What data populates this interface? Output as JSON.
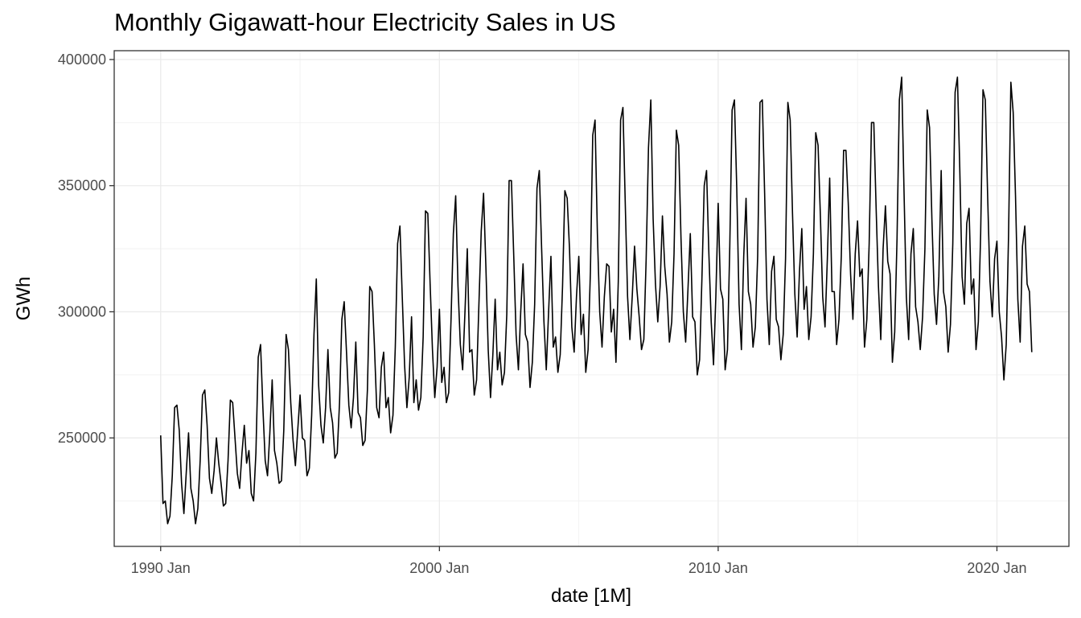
{
  "chart_data": {
    "type": "line",
    "title": "Monthly Gigawatt-hour Electricity Sales in US",
    "xlabel": "date [1M]",
    "ylabel": "GWh",
    "x_ticks": [
      "1990 Jan",
      "2000 Jan",
      "2010 Jan",
      "2020 Jan"
    ],
    "y_ticks": [
      "250000",
      "300000",
      "350000",
      "400000"
    ],
    "ylim": [
      207000,
      403500
    ],
    "xlim": [
      "1988-05",
      "2022-08"
    ],
    "grid": true,
    "legend": "none",
    "line_color": "#000000",
    "series": [
      {
        "start": "1990-01",
        "frequency": "monthly",
        "values": [
          251000,
          224000,
          225000,
          216000,
          219000,
          235000,
          262000,
          263000,
          253000,
          232000,
          220000,
          236000,
          252000,
          230000,
          225000,
          216000,
          222000,
          241000,
          267000,
          269000,
          255000,
          234000,
          228000,
          237000,
          250000,
          240000,
          232000,
          223000,
          224000,
          241000,
          265000,
          264000,
          250000,
          236000,
          230000,
          244000,
          255000,
          240000,
          245000,
          228000,
          225000,
          244000,
          282000,
          287000,
          262000,
          241000,
          235000,
          252000,
          273000,
          245000,
          240000,
          232000,
          233000,
          253000,
          291000,
          285000,
          264000,
          249000,
          239000,
          253000,
          267000,
          250000,
          249000,
          235000,
          238000,
          259000,
          291000,
          313000,
          271000,
          255000,
          248000,
          262000,
          285000,
          262000,
          256000,
          242000,
          244000,
          264000,
          297000,
          304000,
          284000,
          263000,
          254000,
          266000,
          288000,
          260000,
          258000,
          247000,
          249000,
          269000,
          310000,
          308000,
          287000,
          262000,
          258000,
          278000,
          284000,
          262000,
          266000,
          252000,
          259000,
          286000,
          327000,
          334000,
          306000,
          279000,
          262000,
          274000,
          298000,
          264000,
          273000,
          261000,
          266000,
          290000,
          340000,
          339000,
          311000,
          285000,
          266000,
          278000,
          301000,
          272000,
          278000,
          264000,
          268000,
          297000,
          331000,
          346000,
          310000,
          287000,
          277000,
          300000,
          325000,
          284000,
          285000,
          267000,
          273000,
          303000,
          332000,
          347000,
          318000,
          285000,
          266000,
          283000,
          305000,
          277000,
          284000,
          271000,
          276000,
          299000,
          352000,
          352000,
          322000,
          291000,
          277000,
          300000,
          319000,
          291000,
          288000,
          270000,
          280000,
          303000,
          349000,
          356000,
          325000,
          296000,
          277000,
          300000,
          322000,
          286000,
          290000,
          276000,
          283000,
          310000,
          348000,
          345000,
          325000,
          294000,
          284000,
          306000,
          322000,
          291000,
          299000,
          276000,
          285000,
          316000,
          370000,
          376000,
          331000,
          300000,
          286000,
          306000,
          319000,
          318000,
          292000,
          301000,
          280000,
          312000,
          376000,
          381000,
          343000,
          306000,
          289000,
          306000,
          326000,
          309000,
          298000,
          285000,
          289000,
          321000,
          365000,
          384000,
          337000,
          311000,
          296000,
          310000,
          338000,
          318000,
          307000,
          288000,
          296000,
          323000,
          372000,
          366000,
          329000,
          300000,
          288000,
          309000,
          331000,
          298000,
          296000,
          275000,
          281000,
          313000,
          350000,
          356000,
          323000,
          296000,
          279000,
          306000,
          343000,
          309000,
          305000,
          277000,
          285000,
          326000,
          380000,
          384000,
          349000,
          303000,
          285000,
          322000,
          345000,
          308000,
          303000,
          286000,
          294000,
          322000,
          383000,
          384000,
          347000,
          305000,
          287000,
          316000,
          322000,
          297000,
          294000,
          281000,
          291000,
          321000,
          383000,
          376000,
          339000,
          307000,
          290000,
          316000,
          333000,
          301000,
          310000,
          289000,
          298000,
          323000,
          371000,
          366000,
          338000,
          306000,
          294000,
          321000,
          353000,
          308000,
          308000,
          287000,
          297000,
          322000,
          364000,
          364000,
          343000,
          315000,
          297000,
          323000,
          336000,
          314000,
          317000,
          286000,
          297000,
          327000,
          375000,
          375000,
          341000,
          310000,
          289000,
          325000,
          342000,
          320000,
          315000,
          280000,
          292000,
          329000,
          384000,
          393000,
          348000,
          306000,
          289000,
          323000,
          333000,
          302000,
          296000,
          285000,
          298000,
          325000,
          380000,
          373000,
          337000,
          307000,
          295000,
          314000,
          356000,
          308000,
          302000,
          284000,
          295000,
          327000,
          387000,
          393000,
          357000,
          314000,
          303000,
          335000,
          341000,
          307000,
          313000,
          285000,
          296000,
          331000,
          388000,
          384000,
          346000,
          312000,
          298000,
          321000,
          328000,
          300000,
          290000,
          273000,
          287000,
          330000,
          391000,
          379000,
          346000,
          305000,
          288000,
          326000,
          334000,
          311000,
          308000,
          284000
        ]
      }
    ]
  }
}
